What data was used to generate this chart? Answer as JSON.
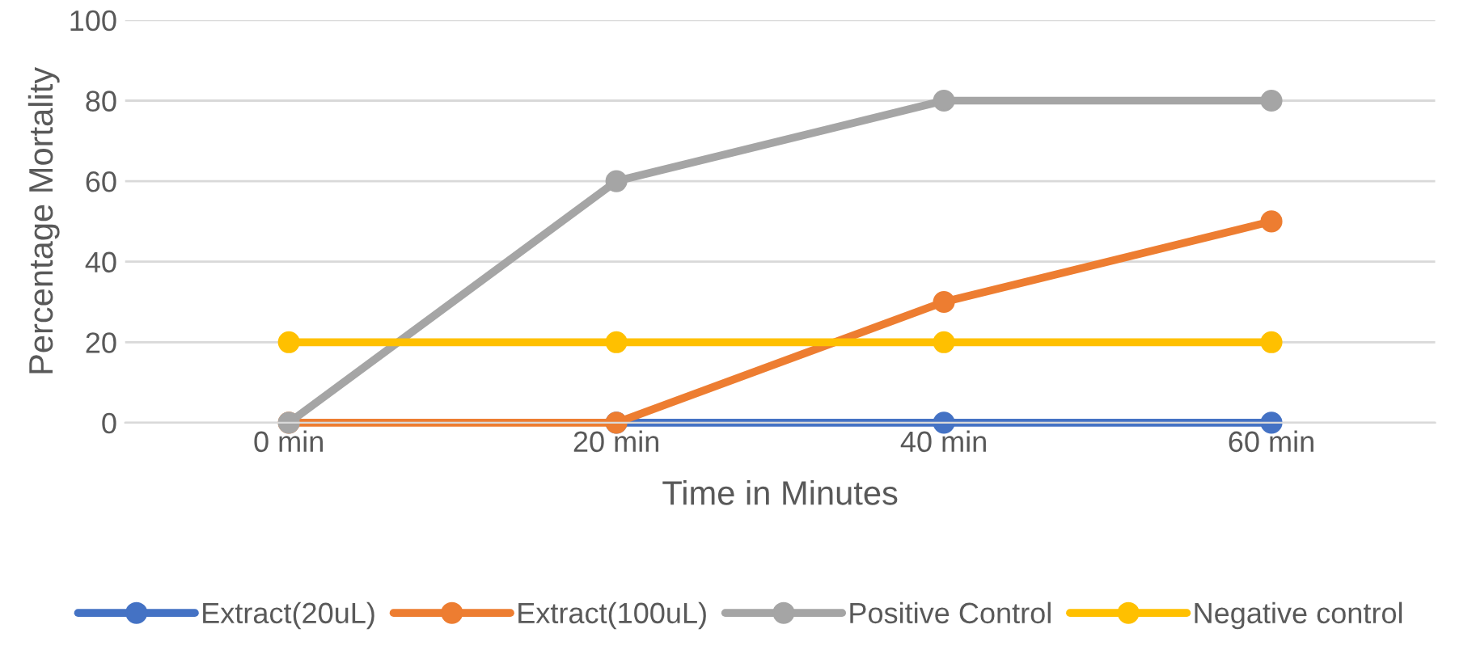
{
  "chart_data": {
    "type": "line",
    "xlabel": "Time in Minutes",
    "ylabel": "Percentage Mortality",
    "categories": [
      "0 min",
      "20 min",
      "40 min",
      "60 min"
    ],
    "series": [
      {
        "name": "Extract(20uL)",
        "color": "#4472c4",
        "values": [
          null,
          0,
          0,
          0
        ]
      },
      {
        "name": "Extract(100uL)",
        "color": "#ed7d31",
        "values": [
          0,
          0,
          30,
          50
        ]
      },
      {
        "name": "Positive Control",
        "color": "#a5a5a5",
        "values": [
          0,
          60,
          80,
          80
        ]
      },
      {
        "name": "Negative control",
        "color": "#ffc000",
        "values": [
          20,
          20,
          20,
          20
        ]
      }
    ],
    "ylim": [
      0,
      100
    ],
    "yticks": [
      0,
      20,
      40,
      60,
      80,
      100
    ],
    "grid": "y",
    "legend": "bottom",
    "marker": "circle",
    "line_style": "solid"
  }
}
